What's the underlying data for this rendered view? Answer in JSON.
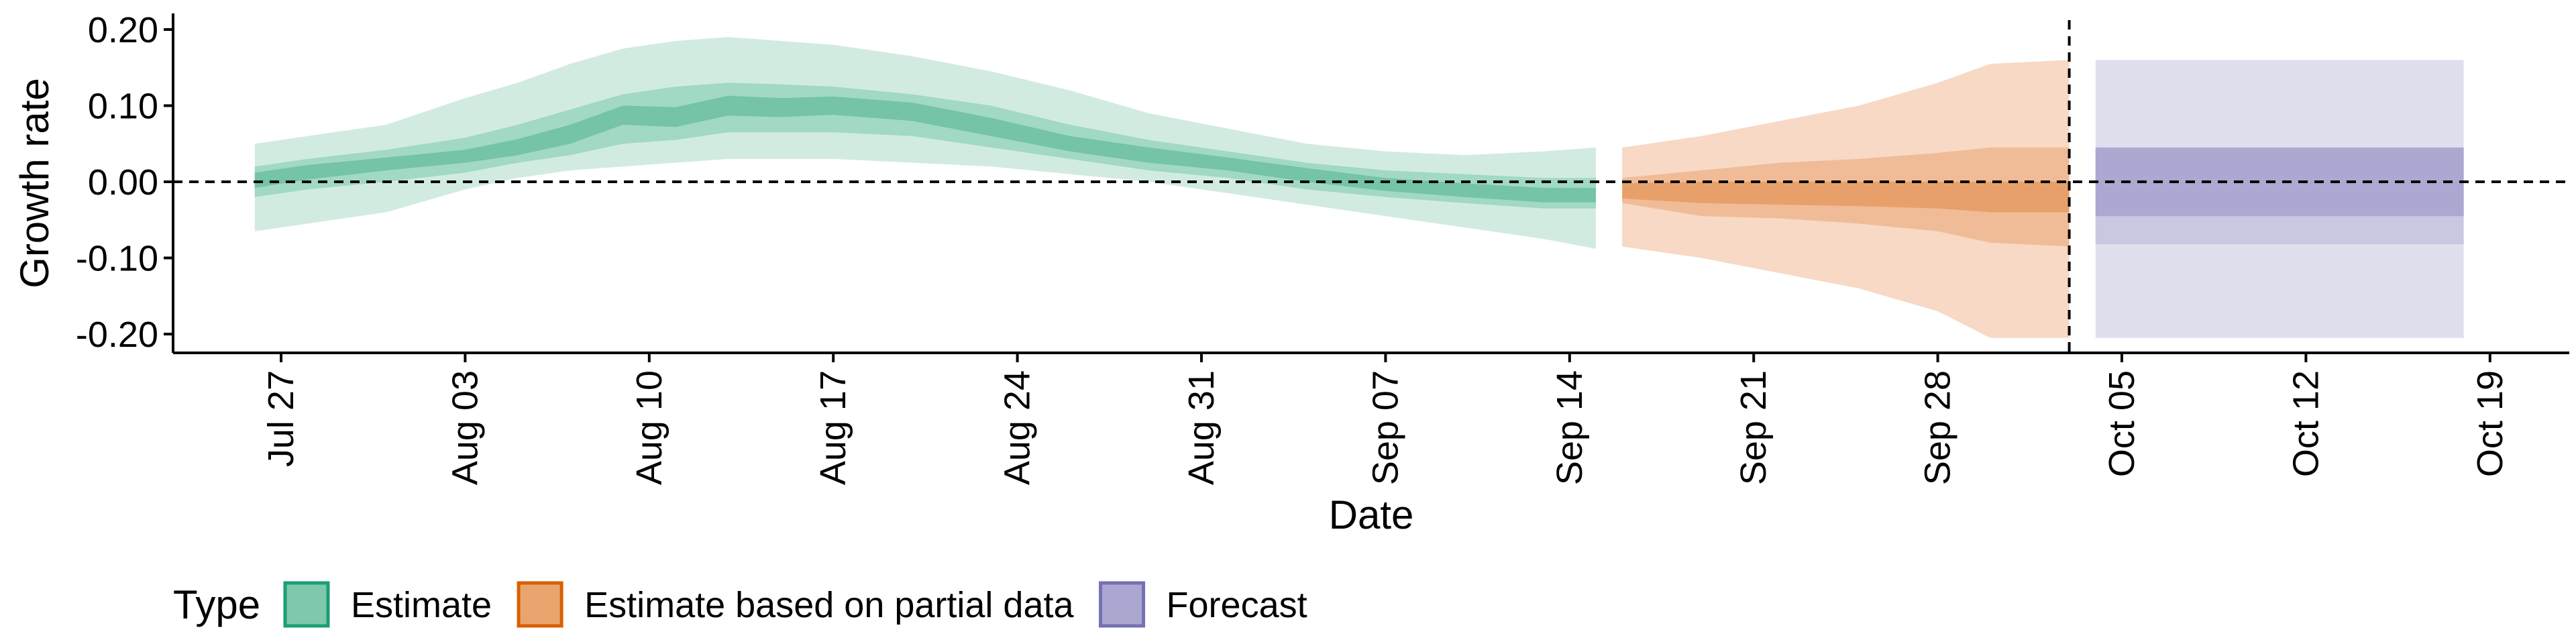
{
  "chart_data": {
    "type": "area",
    "xlabel": "Date",
    "ylabel": "Growth rate",
    "ylim": [
      -0.22,
      0.22
    ],
    "xlim": [
      "2020-07-22",
      "2020-10-20"
    ],
    "y_ticks": [
      {
        "value": 0.2,
        "label": "0.20"
      },
      {
        "value": 0.1,
        "label": "0.10"
      },
      {
        "value": 0.0,
        "label": "0.00"
      },
      {
        "value": -0.1,
        "label": "-0.10"
      },
      {
        "value": -0.2,
        "label": "-0.20"
      }
    ],
    "x_ticks": [
      {
        "date": "2020-07-27",
        "label": "Jul 27"
      },
      {
        "date": "2020-08-03",
        "label": "Aug 03"
      },
      {
        "date": "2020-08-10",
        "label": "Aug 10"
      },
      {
        "date": "2020-08-17",
        "label": "Aug 17"
      },
      {
        "date": "2020-08-24",
        "label": "Aug 24"
      },
      {
        "date": "2020-08-31",
        "label": "Aug 31"
      },
      {
        "date": "2020-09-07",
        "label": "Sep 07"
      },
      {
        "date": "2020-09-14",
        "label": "Sep 14"
      },
      {
        "date": "2020-09-21",
        "label": "Sep 21"
      },
      {
        "date": "2020-09-28",
        "label": "Sep 28"
      },
      {
        "date": "2020-10-05",
        "label": "Oct 05"
      },
      {
        "date": "2020-10-12",
        "label": "Oct 12"
      },
      {
        "date": "2020-10-19",
        "label": "Oct 19"
      }
    ],
    "reference_lines": {
      "horizontal_y": 0.0,
      "vertical_date": "2020-10-03",
      "style": "dashed"
    },
    "grid": false,
    "legend": {
      "title": "Type",
      "position": "bottom-left",
      "items": [
        {
          "label": "Estimate",
          "fill": "#7fc8ab",
          "border": "#1b9e77"
        },
        {
          "label": "Estimate based on partial data",
          "fill": "#e9a56e",
          "border": "#d95f02"
        },
        {
          "label": "Forecast",
          "fill": "#aaa8d0",
          "border": "#7570b3"
        }
      ]
    },
    "series": [
      {
        "name": "Estimate",
        "colors": {
          "outer": "#d2ebe1",
          "middle": "#a1d9c3",
          "inner": "#74c4a5"
        },
        "points": [
          {
            "date": "2020-07-26",
            "lo90": -0.065,
            "lo50": -0.02,
            "lo20": -0.008,
            "hi20": 0.012,
            "hi50": 0.02,
            "hi90": 0.05
          },
          {
            "date": "2020-07-28",
            "lo90": -0.055,
            "lo50": -0.01,
            "lo20": 0.003,
            "hi20": 0.022,
            "hi50": 0.03,
            "hi90": 0.06
          },
          {
            "date": "2020-07-31",
            "lo90": -0.04,
            "lo50": 0.0,
            "lo20": 0.015,
            "hi20": 0.032,
            "hi50": 0.042,
            "hi90": 0.075
          },
          {
            "date": "2020-08-03",
            "lo90": -0.01,
            "lo50": 0.012,
            "lo20": 0.025,
            "hi20": 0.042,
            "hi50": 0.058,
            "hi90": 0.11
          },
          {
            "date": "2020-08-05",
            "lo90": 0.005,
            "lo50": 0.025,
            "lo20": 0.035,
            "hi20": 0.056,
            "hi50": 0.075,
            "hi90": 0.13
          },
          {
            "date": "2020-08-07",
            "lo90": 0.015,
            "lo50": 0.035,
            "lo20": 0.05,
            "hi20": 0.075,
            "hi50": 0.095,
            "hi90": 0.155
          },
          {
            "date": "2020-08-09",
            "lo90": 0.02,
            "lo50": 0.05,
            "lo20": 0.075,
            "hi20": 0.1,
            "hi50": 0.115,
            "hi90": 0.175
          },
          {
            "date": "2020-08-11",
            "lo90": 0.025,
            "lo50": 0.055,
            "lo20": 0.072,
            "hi20": 0.098,
            "hi50": 0.125,
            "hi90": 0.185
          },
          {
            "date": "2020-08-13",
            "lo90": 0.03,
            "lo50": 0.065,
            "lo20": 0.087,
            "hi20": 0.113,
            "hi50": 0.13,
            "hi90": 0.19
          },
          {
            "date": "2020-08-15",
            "lo90": 0.03,
            "lo50": 0.065,
            "lo20": 0.085,
            "hi20": 0.11,
            "hi50": 0.128,
            "hi90": 0.185
          },
          {
            "date": "2020-08-17",
            "lo90": 0.03,
            "lo50": 0.065,
            "lo20": 0.088,
            "hi20": 0.112,
            "hi50": 0.125,
            "hi90": 0.18
          },
          {
            "date": "2020-08-20",
            "lo90": 0.025,
            "lo50": 0.06,
            "lo20": 0.08,
            "hi20": 0.104,
            "hi50": 0.115,
            "hi90": 0.165
          },
          {
            "date": "2020-08-23",
            "lo90": 0.02,
            "lo50": 0.045,
            "lo20": 0.06,
            "hi20": 0.084,
            "hi50": 0.1,
            "hi90": 0.145
          },
          {
            "date": "2020-08-26",
            "lo90": 0.01,
            "lo50": 0.03,
            "lo20": 0.04,
            "hi20": 0.06,
            "hi50": 0.075,
            "hi90": 0.12
          },
          {
            "date": "2020-08-29",
            "lo90": 0.0,
            "lo50": 0.015,
            "lo20": 0.025,
            "hi20": 0.045,
            "hi50": 0.055,
            "hi90": 0.09
          },
          {
            "date": "2020-09-01",
            "lo90": -0.015,
            "lo50": 0.005,
            "lo20": 0.015,
            "hi20": 0.032,
            "hi50": 0.04,
            "hi90": 0.07
          },
          {
            "date": "2020-09-04",
            "lo90": -0.03,
            "lo50": -0.01,
            "lo20": 0.0,
            "hi20": 0.018,
            "hi50": 0.025,
            "hi90": 0.05
          },
          {
            "date": "2020-09-07",
            "lo90": -0.045,
            "lo50": -0.02,
            "lo20": -0.012,
            "hi20": 0.005,
            "hi50": 0.015,
            "hi90": 0.04
          },
          {
            "date": "2020-09-10",
            "lo90": -0.06,
            "lo50": -0.028,
            "lo20": -0.02,
            "hi20": -0.002,
            "hi50": 0.01,
            "hi90": 0.035
          },
          {
            "date": "2020-09-13",
            "lo90": -0.075,
            "lo50": -0.035,
            "lo20": -0.027,
            "hi20": -0.008,
            "hi50": 0.005,
            "hi90": 0.04
          },
          {
            "date": "2020-09-15",
            "lo90": -0.088,
            "lo50": -0.035,
            "lo20": -0.027,
            "hi20": -0.008,
            "hi50": 0.005,
            "hi90": 0.045
          }
        ]
      },
      {
        "name": "Estimate based on partial data",
        "colors": {
          "outer": "#f7d9c5",
          "middle": "#f0bc98",
          "inner": "#e8a06a"
        },
        "points": [
          {
            "date": "2020-09-16",
            "lo90": -0.085,
            "lo50": -0.028,
            "lo20": -0.022,
            "hi20": -0.002,
            "hi50": 0.005,
            "hi90": 0.045
          },
          {
            "date": "2020-09-19",
            "lo90": -0.1,
            "lo50": -0.045,
            "lo20": -0.028,
            "hi20": 0.0,
            "hi50": 0.015,
            "hi90": 0.06
          },
          {
            "date": "2020-09-22",
            "lo90": -0.12,
            "lo50": -0.048,
            "lo20": -0.03,
            "hi20": 0.0,
            "hi50": 0.025,
            "hi90": 0.08
          },
          {
            "date": "2020-09-25",
            "lo90": -0.14,
            "lo50": -0.055,
            "lo20": -0.032,
            "hi20": 0.0,
            "hi50": 0.03,
            "hi90": 0.1
          },
          {
            "date": "2020-09-28",
            "lo90": -0.17,
            "lo50": -0.065,
            "lo20": -0.035,
            "hi20": 0.0,
            "hi50": 0.038,
            "hi90": 0.13
          },
          {
            "date": "2020-09-30",
            "lo90": -0.205,
            "lo50": -0.08,
            "lo20": -0.04,
            "hi20": 0.0,
            "hi50": 0.045,
            "hi90": 0.155
          },
          {
            "date": "2020-10-03",
            "lo90": -0.205,
            "lo50": -0.085,
            "lo20": -0.04,
            "hi20": 0.0,
            "hi50": 0.045,
            "hi90": 0.16
          }
        ]
      },
      {
        "name": "Forecast",
        "colors": {
          "outer": "#e0dfee",
          "middle": "#c9c7e2",
          "inner": "#aba8d1"
        },
        "points": [
          {
            "date": "2020-10-04",
            "lo90": -0.205,
            "lo50": -0.082,
            "lo20": -0.045,
            "hi20": 0.045,
            "hi50": 0.045,
            "hi90": 0.16
          },
          {
            "date": "2020-10-18",
            "lo90": -0.205,
            "lo50": -0.082,
            "lo20": -0.045,
            "hi20": 0.045,
            "hi50": 0.045,
            "hi90": 0.16
          }
        ]
      }
    ]
  }
}
